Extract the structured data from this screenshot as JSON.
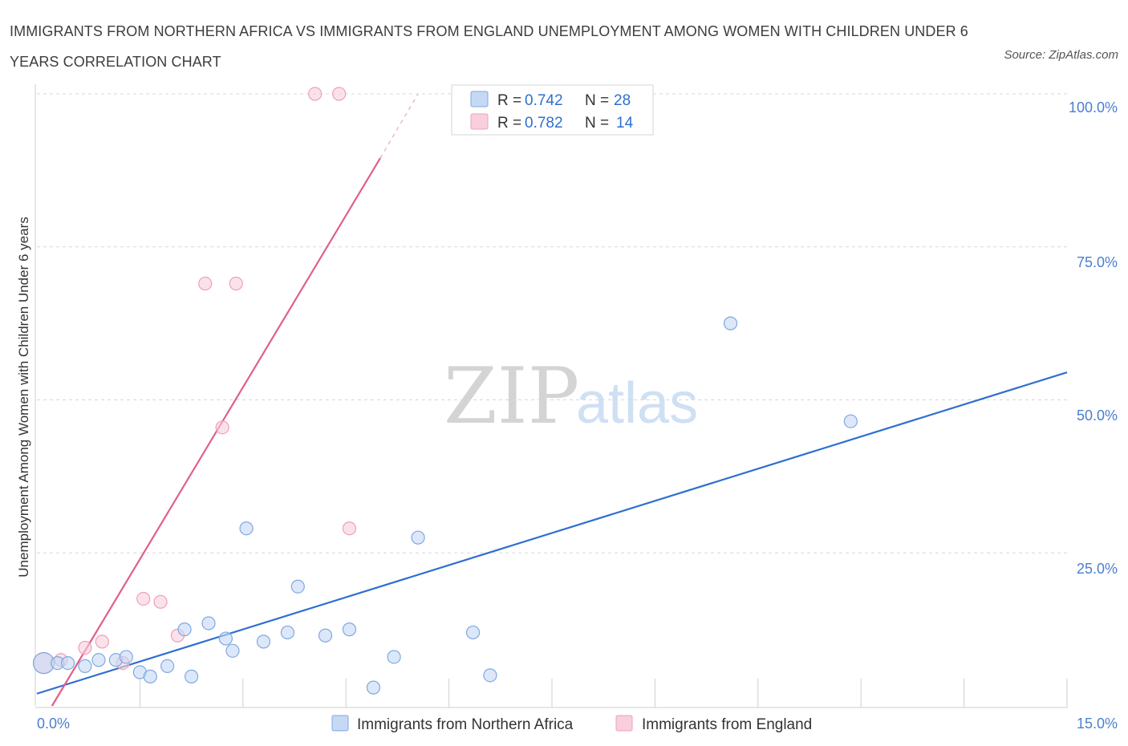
{
  "title": "IMMIGRANTS FROM NORTHERN AFRICA VS IMMIGRANTS FROM ENGLAND UNEMPLOYMENT AMONG WOMEN WITH CHILDREN UNDER 6 YEARS CORRELATION CHART",
  "source": "Source: ZipAtlas.com",
  "watermark": {
    "zip": "ZIP",
    "atlas": "atlas"
  },
  "colors": {
    "blue_fill": "#c5d9f5",
    "blue_stroke": "#7fa8e0",
    "blue_line": "#2f6fd1",
    "pink_fill": "#f9cfdc",
    "pink_stroke": "#eea0b8",
    "pink_line": "#e0608a",
    "grid": "#d8d8d8",
    "axis_label": "#4a7fd0"
  },
  "legend": {
    "rows": [
      {
        "r_label": "R = ",
        "r_value": "0.742",
        "n_label": "N = ",
        "n_value": "28",
        "series": "blue"
      },
      {
        "r_label": "R = ",
        "r_value": "0.782",
        "n_label": "N = ",
        "n_value": "14",
        "series": "pink"
      }
    ]
  },
  "chart_data": {
    "type": "scatter",
    "xlabel": "",
    "ylabel": "Unemployment Among Women with Children Under 6 years",
    "xlim": [
      0,
      15
    ],
    "ylim": [
      0,
      100
    ],
    "x_tick_labels": [
      "0.0%",
      "15.0%"
    ],
    "y_tick_labels": [
      "25.0%",
      "50.0%",
      "75.0%",
      "100.0%"
    ],
    "y_ticks": [
      25,
      50,
      75,
      100
    ],
    "grid": true,
    "series": [
      {
        "name": "Immigrants from Northern Africa",
        "color": "blue",
        "points": [
          {
            "x": 0.1,
            "y": 7.0
          },
          {
            "x": 0.3,
            "y": 7.0
          },
          {
            "x": 0.45,
            "y": 7.0
          },
          {
            "x": 0.7,
            "y": 6.5
          },
          {
            "x": 0.9,
            "y": 7.5
          },
          {
            "x": 1.15,
            "y": 7.5
          },
          {
            "x": 1.3,
            "y": 8.0
          },
          {
            "x": 1.5,
            "y": 5.5
          },
          {
            "x": 1.65,
            "y": 4.8
          },
          {
            "x": 1.9,
            "y": 6.5
          },
          {
            "x": 2.15,
            "y": 12.5
          },
          {
            "x": 2.25,
            "y": 4.8
          },
          {
            "x": 2.5,
            "y": 13.5
          },
          {
            "x": 2.75,
            "y": 11.0
          },
          {
            "x": 2.85,
            "y": 9.0
          },
          {
            "x": 3.05,
            "y": 29.0
          },
          {
            "x": 3.3,
            "y": 10.5
          },
          {
            "x": 3.65,
            "y": 12.0
          },
          {
            "x": 3.8,
            "y": 19.5
          },
          {
            "x": 4.2,
            "y": 11.5
          },
          {
            "x": 4.55,
            "y": 12.5
          },
          {
            "x": 4.9,
            "y": 3.0
          },
          {
            "x": 5.2,
            "y": 8.0
          },
          {
            "x": 5.55,
            "y": 27.5
          },
          {
            "x": 6.35,
            "y": 12.0
          },
          {
            "x": 6.6,
            "y": 5.0
          },
          {
            "x": 10.1,
            "y": 62.5
          },
          {
            "x": 11.85,
            "y": 46.5
          }
        ],
        "trend": {
          "x0": 0,
          "y0": 2.0,
          "x1": 15,
          "y1": 54.5
        }
      },
      {
        "name": "Immigrants from England",
        "color": "pink",
        "points": [
          {
            "x": 0.1,
            "y": 7.0
          },
          {
            "x": 0.35,
            "y": 7.5
          },
          {
            "x": 0.7,
            "y": 9.5
          },
          {
            "x": 0.95,
            "y": 10.5
          },
          {
            "x": 1.25,
            "y": 7.0
          },
          {
            "x": 1.55,
            "y": 17.5
          },
          {
            "x": 1.8,
            "y": 17.0
          },
          {
            "x": 2.05,
            "y": 11.5
          },
          {
            "x": 2.45,
            "y": 69.0
          },
          {
            "x": 2.7,
            "y": 45.5
          },
          {
            "x": 2.9,
            "y": 69.0
          },
          {
            "x": 4.55,
            "y": 29.0
          },
          {
            "x": 4.05,
            "y": 100.0
          },
          {
            "x": 4.4,
            "y": 100.0
          }
        ],
        "trend": {
          "x0": 0.22,
          "y0": 0,
          "x1": 5.0,
          "y1": 89.5,
          "dash_x1": 5.55,
          "dash_y1": 100
        }
      }
    ]
  },
  "bottom_legend": {
    "items": [
      {
        "label": "Immigrants from Northern Africa",
        "color": "blue"
      },
      {
        "label": "Immigrants from England",
        "color": "pink"
      }
    ]
  }
}
